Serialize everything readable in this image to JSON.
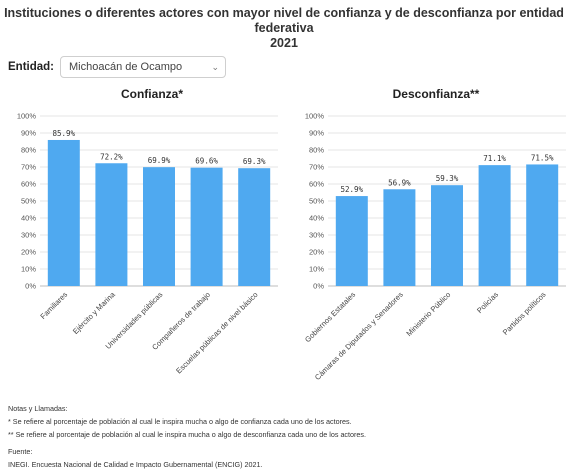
{
  "header": {
    "title_line1": "Instituciones o diferentes actores con mayor nivel de confianza y de desconfianza por entidad",
    "title_line2": "federativa",
    "year": "2021"
  },
  "filter": {
    "label": "Entidad:",
    "selected": "Michoacán de Ocampo"
  },
  "chart_data": [
    {
      "type": "bar",
      "title": "Confianza*",
      "categories": [
        "Familiares",
        "Ejército y Marina",
        "Universidades públicas",
        "Compañeros de trabajo",
        "Escuelas públicas de nivel básico"
      ],
      "values": [
        85.9,
        72.2,
        69.9,
        69.6,
        69.3
      ],
      "value_labels": [
        "85.9%",
        "72.2%",
        "69.9%",
        "69.6%",
        "69.3%"
      ],
      "ylim": [
        0,
        100
      ],
      "yticks": [
        "0%",
        "10%",
        "20%",
        "30%",
        "40%",
        "50%",
        "60%",
        "70%",
        "80%",
        "90%",
        "100%"
      ],
      "grid": true,
      "bar_color": "#4fa9f0"
    },
    {
      "type": "bar",
      "title": "Desconfianza**",
      "categories": [
        "Gobiernos Estatales",
        "Cámaras de Diputados y Senadores",
        "Ministerio Público",
        "Policías",
        "Partidos políticos"
      ],
      "values": [
        52.9,
        56.9,
        59.3,
        71.1,
        71.5
      ],
      "value_labels": [
        "52.9%",
        "56.9%",
        "59.3%",
        "71.1%",
        "71.5%"
      ],
      "ylim": [
        0,
        100
      ],
      "yticks": [
        "0%",
        "10%",
        "20%",
        "30%",
        "40%",
        "50%",
        "60%",
        "70%",
        "80%",
        "90%",
        "100%"
      ],
      "grid": true,
      "bar_color": "#4fa9f0"
    }
  ],
  "notes": {
    "heading": "Notas y Llamadas:",
    "note1": "* Se refiere al porcentaje de población al cual le inspira mucha o algo de confianza cada uno de los actores.",
    "note2": "** Se refiere al porcentaje de población al cual le inspira mucha o algo de desconfianza cada uno de los actores.",
    "source_heading": "Fuente:",
    "source": "INEGI. Encuesta Nacional de Calidad e Impacto Gubernamental (ENCIG) 2021."
  }
}
